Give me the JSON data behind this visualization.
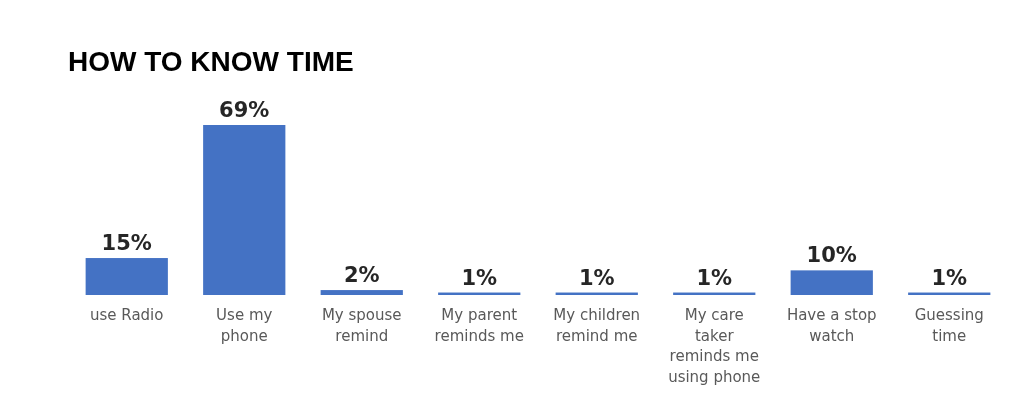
{
  "chart_data": {
    "type": "bar",
    "title": "HOW TO KNOW TIME",
    "categories": [
      "use Radio",
      "Use my phone",
      "My spouse remind",
      "My parent reminds me",
      "My children remind me",
      "My care taker reminds me using phone",
      "Have a stop watch",
      "Guessing time"
    ],
    "values": [
      15,
      69,
      2,
      1,
      1,
      1,
      10,
      1
    ],
    "value_labels": [
      "15%",
      "69%",
      "2%",
      "1%",
      "1%",
      "1%",
      "10%",
      "1%"
    ],
    "color": "#4472c4"
  }
}
